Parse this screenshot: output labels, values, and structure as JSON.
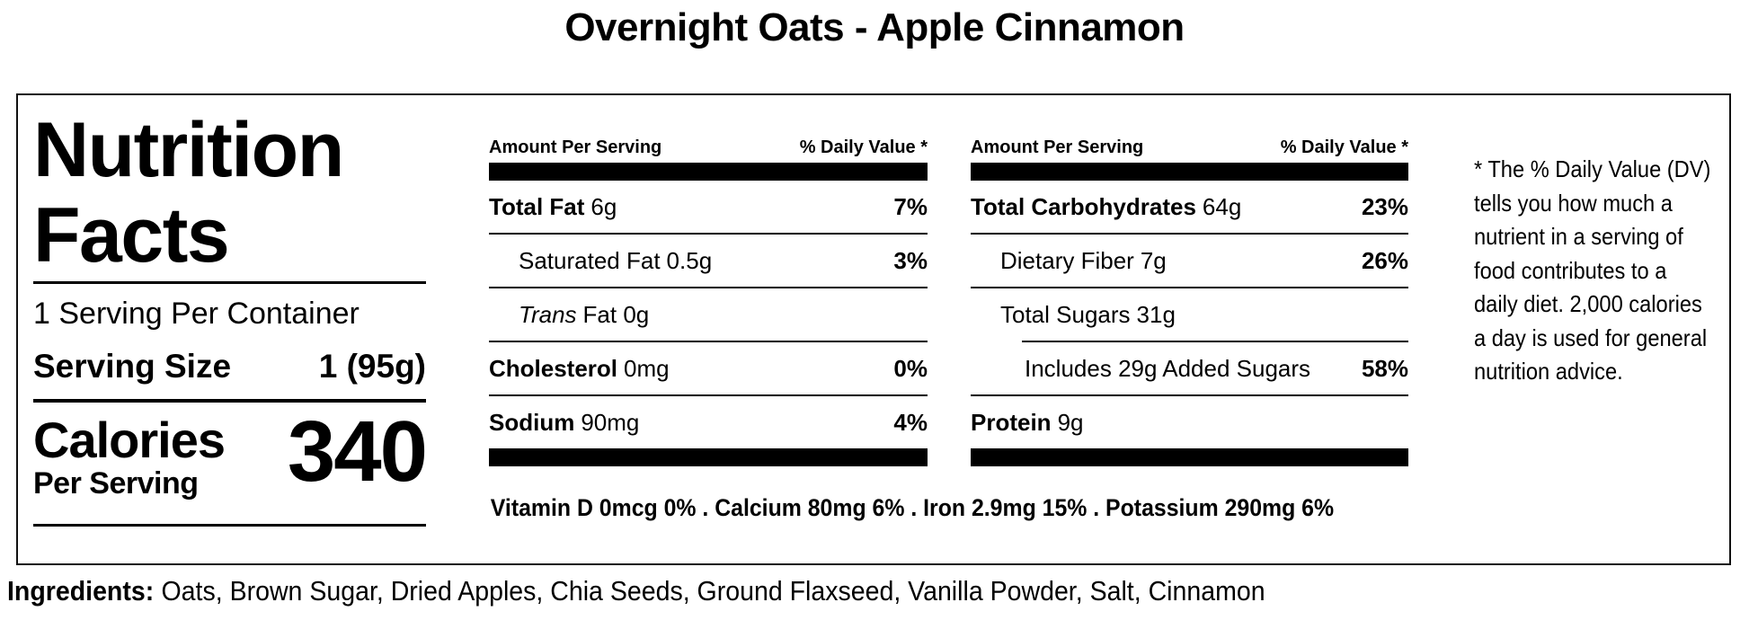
{
  "page_title": "Overnight Oats - Apple Cinnamon",
  "panel": {
    "heading": {
      "line1": "Nutrition",
      "line2": "Facts"
    },
    "servings_per_container": "1 Serving Per Container",
    "serving_size": {
      "label": "Serving Size",
      "value": "1 (95g)"
    },
    "calories": {
      "label": "Calories",
      "sublabel": "Per Serving",
      "value": "340"
    },
    "columns": [
      {
        "header_left": "Amount Per Serving",
        "header_right": "% Daily Value *",
        "rows": [
          {
            "name": "Total Fat",
            "amount": "6g",
            "dv": "7%"
          },
          {
            "name": "Saturated Fat",
            "amount": "0.5g",
            "dv": "3%"
          },
          {
            "name": "Trans",
            "amount": "Fat 0g",
            "dv": ""
          },
          {
            "name": "Cholesterol",
            "amount": "0mg",
            "dv": "0%"
          },
          {
            "name": "Sodium",
            "amount": "90mg",
            "dv": "4%"
          }
        ]
      },
      {
        "header_left": "Amount Per Serving",
        "header_right": "% Daily Value *",
        "rows": [
          {
            "name": "Total Carbohydrates",
            "amount": "64g",
            "dv": "23%"
          },
          {
            "name": "Dietary Fiber",
            "amount": "7g",
            "dv": "26%"
          },
          {
            "name": "Total Sugars",
            "amount": "31g",
            "dv": ""
          },
          {
            "name": "Includes 29g Added Sugars",
            "amount": "",
            "dv": "58%"
          },
          {
            "name": "Protein",
            "amount": "9g",
            "dv": ""
          }
        ]
      }
    ],
    "micronutrients": "Vitamin D 0mcg 0% . Calcium 80mg 6% . Iron 2.9mg 15% . Potassium 290mg 6%",
    "footnote": "* The % Daily Value (DV)\ntells you how much a\nnutrient in a serving of\nfood contributes to a\ndaily diet. 2,000 calories\na day is used for general\nnutrition advice."
  },
  "ingredients": {
    "label": "Ingredients:",
    "text": "Oats, Brown Sugar, Dried Apples, Chia Seeds, Ground Flaxseed, Vanilla Powder, Salt, Cinnamon"
  }
}
